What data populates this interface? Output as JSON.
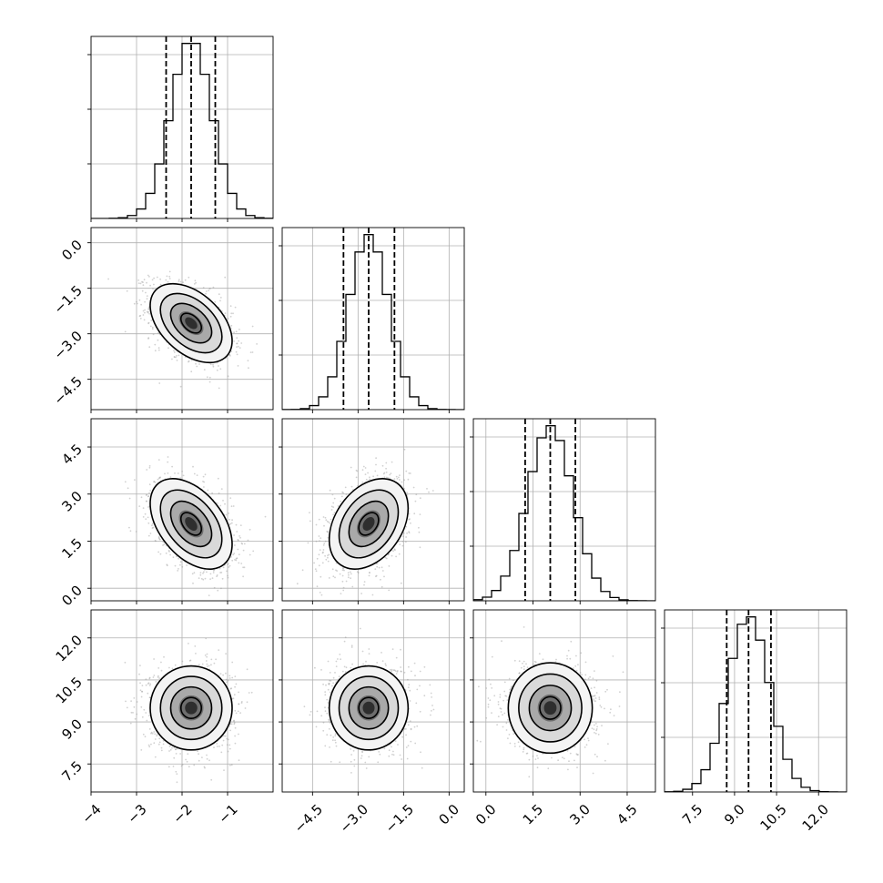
{
  "chart_data": {
    "type": "corner",
    "parameters": [
      {
        "mean": -1.8,
        "sd": 0.45,
        "lim": [
          -4.0,
          0.0
        ],
        "ticks": [
          -4,
          -3,
          -2,
          -1
        ],
        "tick_labels": [
          "−4",
          "−3",
          "−2",
          "−1"
        ],
        "quantiles": [
          -2.35,
          -1.8,
          -1.27
        ]
      },
      {
        "mean": -2.65,
        "sd": 0.65,
        "lim": [
          -5.5,
          0.5
        ],
        "ticks": [
          -4.5,
          -3.0,
          -1.5,
          0.0
        ],
        "tick_labels": [
          "−4.5",
          "−3.0",
          "−1.5",
          "0.0"
        ],
        "quantiles": [
          -3.48,
          -2.65,
          -1.8
        ]
      },
      {
        "mean": 2.05,
        "sd": 0.72,
        "lim": [
          -0.4,
          5.4
        ],
        "ticks": [
          0.0,
          1.5,
          3.0,
          4.5
        ],
        "tick_labels": [
          "0.0",
          "1.5",
          "3.0",
          "4.5"
        ],
        "quantiles": [
          1.25,
          2.05,
          2.85
        ]
      },
      {
        "mean": 9.5,
        "sd": 0.75,
        "lim": [
          6.5,
          13.0
        ],
        "ticks": [
          7.5,
          9.0,
          10.5,
          12.0
        ],
        "tick_labels": [
          "7.5",
          "9.0",
          "10.5",
          "12.0"
        ],
        "quantiles": [
          8.72,
          9.5,
          10.3
        ]
      }
    ],
    "correlations": [
      [
        1.0,
        -0.45,
        -0.45,
        0.0
      ],
      [
        -0.45,
        1.0,
        0.35,
        0.0
      ],
      [
        -0.45,
        0.35,
        1.0,
        0.0
      ],
      [
        0.0,
        0.0,
        0.0,
        1.0
      ]
    ],
    "histogram": {
      "bins": 20,
      "y_ticks_count": 3
    },
    "contour_levels_sigma": [
      0.5,
      1.0,
      1.5,
      2.0
    ],
    "scatter_color": "#9a9a9a",
    "grid": true,
    "xlabel": "",
    "ylabel": "",
    "title": ""
  }
}
